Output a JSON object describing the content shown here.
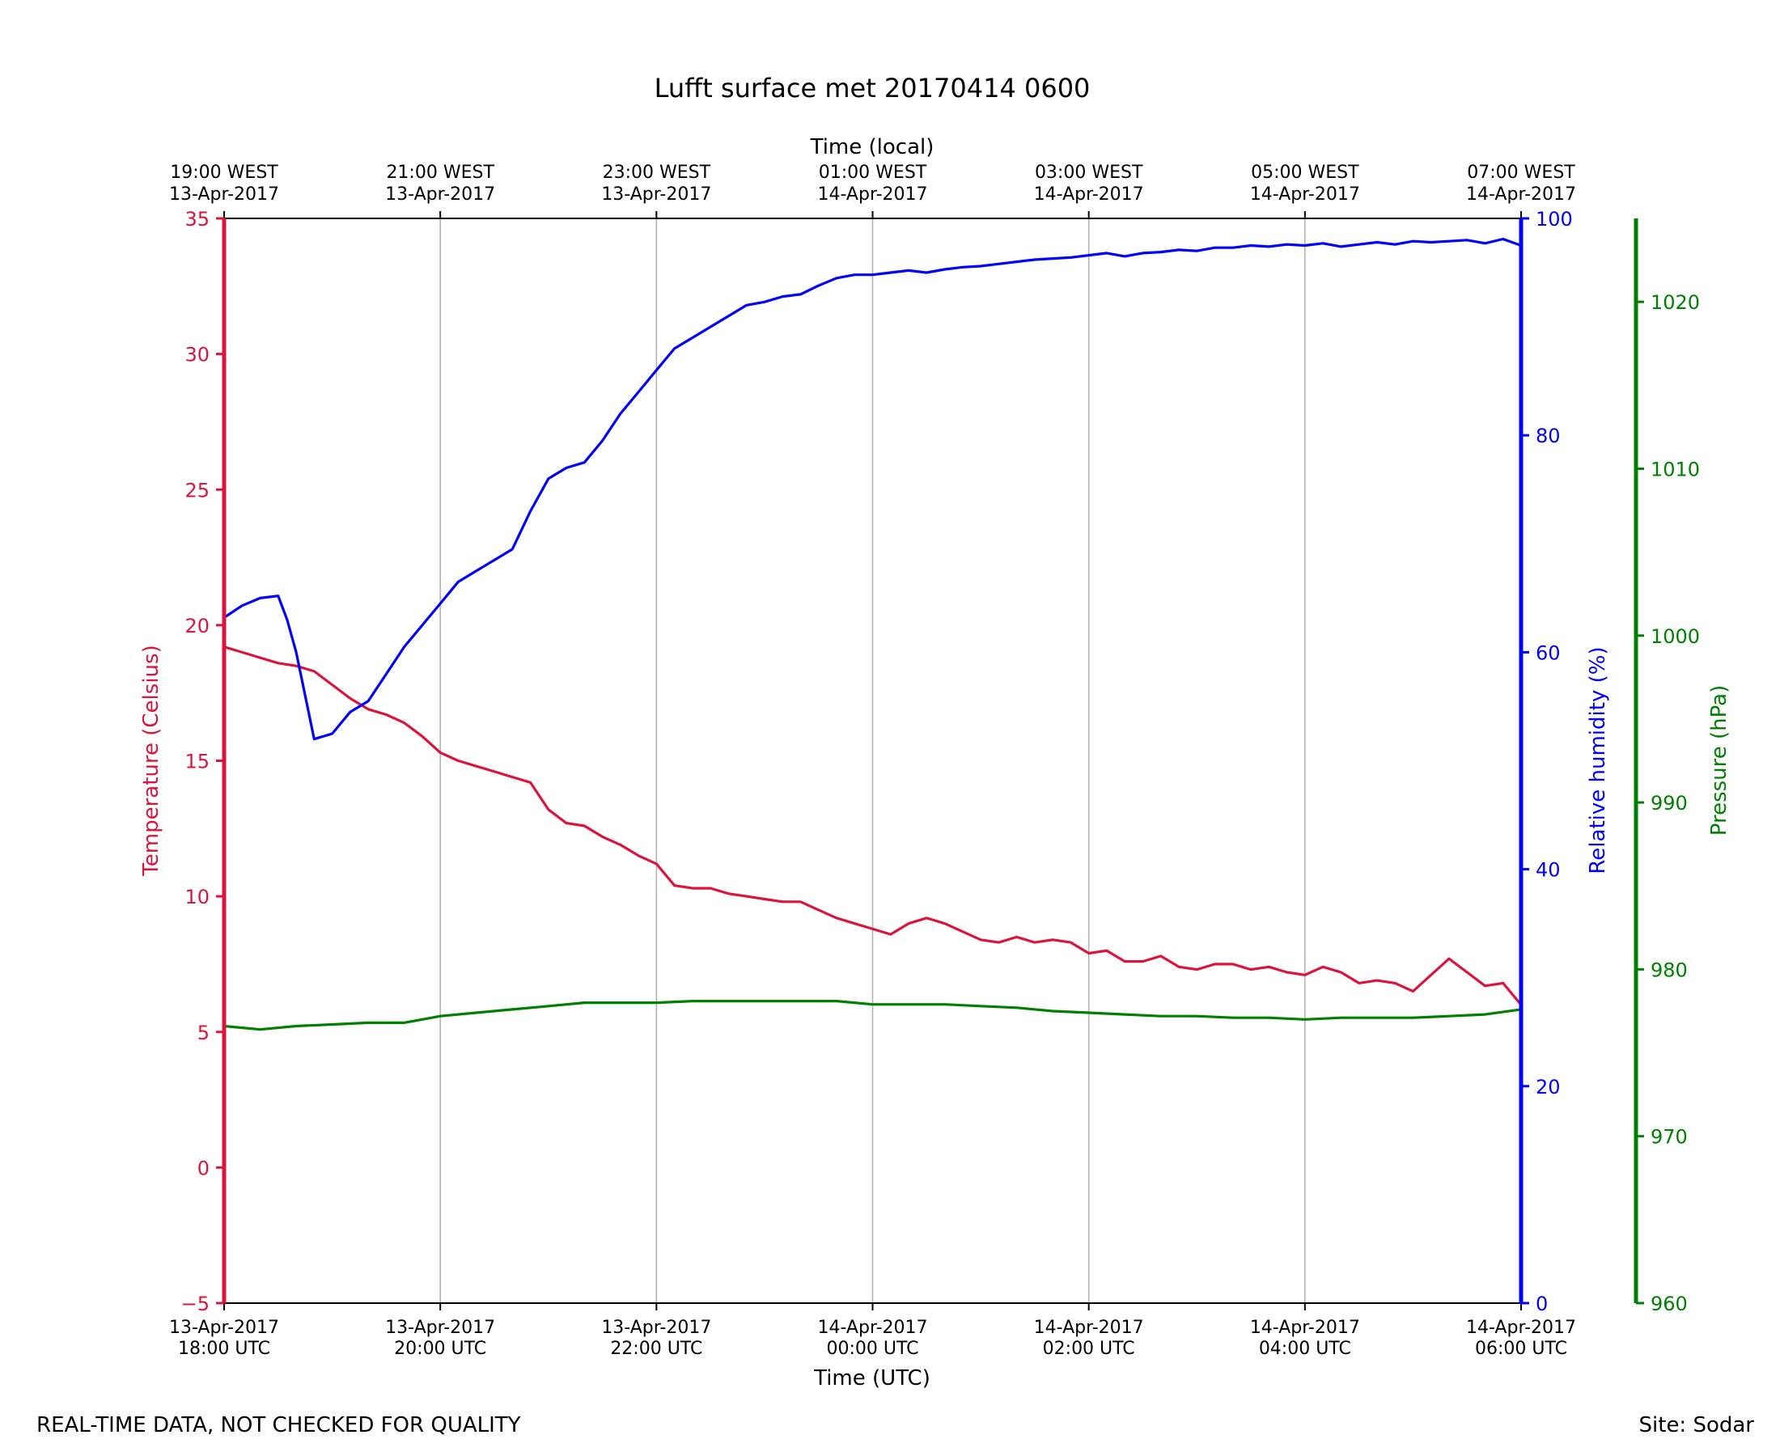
{
  "chart_data": {
    "type": "line",
    "title": "Lufft surface met 20170414 0600",
    "xlabel": "Time (UTC)",
    "x2label": "Time (local)",
    "x_range": [
      "2017-04-13T18:00Z",
      "2017-04-14T06:00Z"
    ],
    "x_ticks": [
      {
        "t": "2017-04-13T18:00Z",
        "line1": "13-Apr-2017",
        "line2": "18:00 UTC"
      },
      {
        "t": "2017-04-13T20:00Z",
        "line1": "13-Apr-2017",
        "line2": "20:00 UTC"
      },
      {
        "t": "2017-04-13T22:00Z",
        "line1": "13-Apr-2017",
        "line2": "22:00 UTC"
      },
      {
        "t": "2017-04-14T00:00Z",
        "line1": "14-Apr-2017",
        "line2": "00:00 UTC"
      },
      {
        "t": "2017-04-14T02:00Z",
        "line1": "14-Apr-2017",
        "line2": "02:00 UTC"
      },
      {
        "t": "2017-04-14T04:00Z",
        "line1": "14-Apr-2017",
        "line2": "04:00 UTC"
      },
      {
        "t": "2017-04-14T06:00Z",
        "line1": "14-Apr-2017",
        "line2": "06:00 UTC"
      }
    ],
    "x2_ticks": [
      {
        "t": "2017-04-13T18:00Z",
        "line1": "19:00 WEST",
        "line2": "13-Apr-2017"
      },
      {
        "t": "2017-04-13T20:00Z",
        "line1": "21:00 WEST",
        "line2": "13-Apr-2017"
      },
      {
        "t": "2017-04-13T22:00Z",
        "line1": "23:00 WEST",
        "line2": "13-Apr-2017"
      },
      {
        "t": "2017-04-14T00:00Z",
        "line1": "01:00 WEST",
        "line2": "14-Apr-2017"
      },
      {
        "t": "2017-04-14T02:00Z",
        "line1": "03:00 WEST",
        "line2": "14-Apr-2017"
      },
      {
        "t": "2017-04-14T04:00Z",
        "line1": "05:00 WEST",
        "line2": "14-Apr-2017"
      },
      {
        "t": "2017-04-14T06:00Z",
        "line1": "07:00 WEST",
        "line2": "14-Apr-2017"
      }
    ],
    "grid": "vertical",
    "axes": [
      {
        "id": "temp",
        "label": "Temperature (Celsius)",
        "side": "left",
        "ylim": [
          -5,
          35
        ],
        "ticks": [
          -5,
          0,
          5,
          10,
          15,
          20,
          25,
          30,
          35
        ],
        "color": "#dc143c"
      },
      {
        "id": "rh",
        "label": "Relative humidity (%)",
        "side": "right",
        "ylim": [
          0,
          100
        ],
        "ticks": [
          0,
          20,
          40,
          60,
          80,
          100
        ],
        "color": "#0000ff"
      },
      {
        "id": "pres",
        "label": "Pressure (hPa)",
        "side": "right-outer",
        "ylim": [
          960,
          1025
        ],
        "ticks": [
          960,
          970,
          980,
          990,
          1000,
          1010,
          1020
        ],
        "color": "#008000"
      }
    ],
    "series": [
      {
        "axis": "temp",
        "color": "#dc143c",
        "points": [
          [
            "2017-04-13T18:00Z",
            19.2
          ],
          [
            "2017-04-13T18:10Z",
            19.0
          ],
          [
            "2017-04-13T18:20Z",
            18.8
          ],
          [
            "2017-04-13T18:30Z",
            18.6
          ],
          [
            "2017-04-13T18:40Z",
            18.5
          ],
          [
            "2017-04-13T18:50Z",
            18.3
          ],
          [
            "2017-04-13T19:00Z",
            17.8
          ],
          [
            "2017-04-13T19:10Z",
            17.3
          ],
          [
            "2017-04-13T19:20Z",
            16.9
          ],
          [
            "2017-04-13T19:30Z",
            16.7
          ],
          [
            "2017-04-13T19:40Z",
            16.4
          ],
          [
            "2017-04-13T19:50Z",
            15.9
          ],
          [
            "2017-04-13T20:00Z",
            15.3
          ],
          [
            "2017-04-13T20:10Z",
            15.0
          ],
          [
            "2017-04-13T20:20Z",
            14.8
          ],
          [
            "2017-04-13T20:30Z",
            14.6
          ],
          [
            "2017-04-13T20:40Z",
            14.4
          ],
          [
            "2017-04-13T20:50Z",
            14.2
          ],
          [
            "2017-04-13T21:00Z",
            13.2
          ],
          [
            "2017-04-13T21:10Z",
            12.7
          ],
          [
            "2017-04-13T21:20Z",
            12.6
          ],
          [
            "2017-04-13T21:30Z",
            12.2
          ],
          [
            "2017-04-13T21:40Z",
            11.9
          ],
          [
            "2017-04-13T21:50Z",
            11.5
          ],
          [
            "2017-04-13T22:00Z",
            11.2
          ],
          [
            "2017-04-13T22:10Z",
            10.4
          ],
          [
            "2017-04-13T22:20Z",
            10.3
          ],
          [
            "2017-04-13T22:30Z",
            10.3
          ],
          [
            "2017-04-13T22:40Z",
            10.1
          ],
          [
            "2017-04-13T22:50Z",
            10.0
          ],
          [
            "2017-04-13T23:00Z",
            9.9
          ],
          [
            "2017-04-13T23:10Z",
            9.8
          ],
          [
            "2017-04-13T23:20Z",
            9.8
          ],
          [
            "2017-04-13T23:30Z",
            9.5
          ],
          [
            "2017-04-13T23:40Z",
            9.2
          ],
          [
            "2017-04-13T23:50Z",
            9.0
          ],
          [
            "2017-04-14T00:00Z",
            8.8
          ],
          [
            "2017-04-14T00:10Z",
            8.6
          ],
          [
            "2017-04-14T00:20Z",
            9.0
          ],
          [
            "2017-04-14T00:30Z",
            9.2
          ],
          [
            "2017-04-14T00:40Z",
            9.0
          ],
          [
            "2017-04-14T00:50Z",
            8.7
          ],
          [
            "2017-04-14T01:00Z",
            8.4
          ],
          [
            "2017-04-14T01:10Z",
            8.3
          ],
          [
            "2017-04-14T01:20Z",
            8.5
          ],
          [
            "2017-04-14T01:30Z",
            8.3
          ],
          [
            "2017-04-14T01:40Z",
            8.4
          ],
          [
            "2017-04-14T01:50Z",
            8.3
          ],
          [
            "2017-04-14T02:00Z",
            7.9
          ],
          [
            "2017-04-14T02:10Z",
            8.0
          ],
          [
            "2017-04-14T02:20Z",
            7.6
          ],
          [
            "2017-04-14T02:30Z",
            7.6
          ],
          [
            "2017-04-14T02:40Z",
            7.8
          ],
          [
            "2017-04-14T02:50Z",
            7.4
          ],
          [
            "2017-04-14T03:00Z",
            7.3
          ],
          [
            "2017-04-14T03:10Z",
            7.5
          ],
          [
            "2017-04-14T03:20Z",
            7.5
          ],
          [
            "2017-04-14T03:30Z",
            7.3
          ],
          [
            "2017-04-14T03:40Z",
            7.4
          ],
          [
            "2017-04-14T03:50Z",
            7.2
          ],
          [
            "2017-04-14T04:00Z",
            7.1
          ],
          [
            "2017-04-14T04:10Z",
            7.4
          ],
          [
            "2017-04-14T04:20Z",
            7.2
          ],
          [
            "2017-04-14T04:30Z",
            6.8
          ],
          [
            "2017-04-14T04:40Z",
            6.9
          ],
          [
            "2017-04-14T04:50Z",
            6.8
          ],
          [
            "2017-04-14T05:00Z",
            6.5
          ],
          [
            "2017-04-14T05:10Z",
            7.1
          ],
          [
            "2017-04-14T05:20Z",
            7.7
          ],
          [
            "2017-04-14T05:30Z",
            7.2
          ],
          [
            "2017-04-14T05:40Z",
            6.7
          ],
          [
            "2017-04-14T05:50Z",
            6.8
          ],
          [
            "2017-04-14T06:00Z",
            6.0
          ]
        ]
      },
      {
        "axis": "rh",
        "color": "#0000ff",
        "points": [
          [
            "2017-04-13T18:00Z",
            63.2
          ],
          [
            "2017-04-13T18:10Z",
            64.3
          ],
          [
            "2017-04-13T18:20Z",
            65.0
          ],
          [
            "2017-04-13T18:30Z",
            65.2
          ],
          [
            "2017-04-13T18:35Z",
            63.0
          ],
          [
            "2017-04-13T18:40Z",
            60.0
          ],
          [
            "2017-04-13T18:45Z",
            56.0
          ],
          [
            "2017-04-13T18:50Z",
            52.0
          ],
          [
            "2017-04-13T19:00Z",
            52.5
          ],
          [
            "2017-04-13T19:10Z",
            54.5
          ],
          [
            "2017-04-13T19:20Z",
            55.5
          ],
          [
            "2017-04-13T19:30Z",
            58.0
          ],
          [
            "2017-04-13T19:40Z",
            60.5
          ],
          [
            "2017-04-13T19:50Z",
            62.5
          ],
          [
            "2017-04-13T20:00Z",
            64.5
          ],
          [
            "2017-04-13T20:10Z",
            66.5
          ],
          [
            "2017-04-13T20:20Z",
            67.5
          ],
          [
            "2017-04-13T20:30Z",
            68.5
          ],
          [
            "2017-04-13T20:40Z",
            69.5
          ],
          [
            "2017-04-13T20:50Z",
            73.0
          ],
          [
            "2017-04-13T21:00Z",
            76.0
          ],
          [
            "2017-04-13T21:10Z",
            77.0
          ],
          [
            "2017-04-13T21:20Z",
            77.5
          ],
          [
            "2017-04-13T21:30Z",
            79.5
          ],
          [
            "2017-04-13T21:40Z",
            82.0
          ],
          [
            "2017-04-13T21:50Z",
            84.0
          ],
          [
            "2017-04-13T22:00Z",
            86.0
          ],
          [
            "2017-04-13T22:10Z",
            88.0
          ],
          [
            "2017-04-13T22:20Z",
            89.0
          ],
          [
            "2017-04-13T22:30Z",
            90.0
          ],
          [
            "2017-04-13T22:40Z",
            91.0
          ],
          [
            "2017-04-13T22:50Z",
            92.0
          ],
          [
            "2017-04-13T23:00Z",
            92.3
          ],
          [
            "2017-04-13T23:10Z",
            92.8
          ],
          [
            "2017-04-13T23:20Z",
            93.0
          ],
          [
            "2017-04-13T23:30Z",
            93.8
          ],
          [
            "2017-04-13T23:40Z",
            94.5
          ],
          [
            "2017-04-13T23:50Z",
            94.8
          ],
          [
            "2017-04-14T00:00Z",
            94.8
          ],
          [
            "2017-04-14T00:10Z",
            95.0
          ],
          [
            "2017-04-14T00:20Z",
            95.2
          ],
          [
            "2017-04-14T00:30Z",
            95.0
          ],
          [
            "2017-04-14T00:40Z",
            95.3
          ],
          [
            "2017-04-14T00:50Z",
            95.5
          ],
          [
            "2017-04-14T01:00Z",
            95.6
          ],
          [
            "2017-04-14T01:10Z",
            95.8
          ],
          [
            "2017-04-14T01:20Z",
            96.0
          ],
          [
            "2017-04-14T01:30Z",
            96.2
          ],
          [
            "2017-04-14T01:40Z",
            96.3
          ],
          [
            "2017-04-14T01:50Z",
            96.4
          ],
          [
            "2017-04-14T02:00Z",
            96.6
          ],
          [
            "2017-04-14T02:10Z",
            96.8
          ],
          [
            "2017-04-14T02:20Z",
            96.5
          ],
          [
            "2017-04-14T02:30Z",
            96.8
          ],
          [
            "2017-04-14T02:40Z",
            96.9
          ],
          [
            "2017-04-14T02:50Z",
            97.1
          ],
          [
            "2017-04-14T03:00Z",
            97.0
          ],
          [
            "2017-04-14T03:10Z",
            97.3
          ],
          [
            "2017-04-14T03:20Z",
            97.3
          ],
          [
            "2017-04-14T03:30Z",
            97.5
          ],
          [
            "2017-04-14T03:40Z",
            97.4
          ],
          [
            "2017-04-14T03:50Z",
            97.6
          ],
          [
            "2017-04-14T04:00Z",
            97.5
          ],
          [
            "2017-04-14T04:10Z",
            97.7
          ],
          [
            "2017-04-14T04:20Z",
            97.4
          ],
          [
            "2017-04-14T04:30Z",
            97.6
          ],
          [
            "2017-04-14T04:40Z",
            97.8
          ],
          [
            "2017-04-14T04:50Z",
            97.6
          ],
          [
            "2017-04-14T05:00Z",
            97.9
          ],
          [
            "2017-04-14T05:10Z",
            97.8
          ],
          [
            "2017-04-14T05:20Z",
            97.9
          ],
          [
            "2017-04-14T05:30Z",
            98.0
          ],
          [
            "2017-04-14T05:40Z",
            97.7
          ],
          [
            "2017-04-14T05:50Z",
            98.1
          ],
          [
            "2017-04-14T06:00Z",
            97.5
          ]
        ]
      },
      {
        "axis": "pres",
        "color": "#008000",
        "points": [
          [
            "2017-04-13T18:00Z",
            976.6
          ],
          [
            "2017-04-13T18:20Z",
            976.4
          ],
          [
            "2017-04-13T18:40Z",
            976.6
          ],
          [
            "2017-04-13T19:00Z",
            976.7
          ],
          [
            "2017-04-13T19:20Z",
            976.8
          ],
          [
            "2017-04-13T19:40Z",
            976.8
          ],
          [
            "2017-04-13T20:00Z",
            977.2
          ],
          [
            "2017-04-13T20:20Z",
            977.4
          ],
          [
            "2017-04-13T20:40Z",
            977.6
          ],
          [
            "2017-04-13T21:00Z",
            977.8
          ],
          [
            "2017-04-13T21:20Z",
            978.0
          ],
          [
            "2017-04-13T21:40Z",
            978.0
          ],
          [
            "2017-04-13T22:00Z",
            978.0
          ],
          [
            "2017-04-13T22:20Z",
            978.1
          ],
          [
            "2017-04-13T22:40Z",
            978.1
          ],
          [
            "2017-04-13T23:00Z",
            978.1
          ],
          [
            "2017-04-13T23:20Z",
            978.1
          ],
          [
            "2017-04-13T23:40Z",
            978.1
          ],
          [
            "2017-04-14T00:00Z",
            977.9
          ],
          [
            "2017-04-14T00:20Z",
            977.9
          ],
          [
            "2017-04-14T00:40Z",
            977.9
          ],
          [
            "2017-04-14T01:00Z",
            977.8
          ],
          [
            "2017-04-14T01:20Z",
            977.7
          ],
          [
            "2017-04-14T01:40Z",
            977.5
          ],
          [
            "2017-04-14T02:00Z",
            977.4
          ],
          [
            "2017-04-14T02:20Z",
            977.3
          ],
          [
            "2017-04-14T02:40Z",
            977.2
          ],
          [
            "2017-04-14T03:00Z",
            977.2
          ],
          [
            "2017-04-14T03:20Z",
            977.1
          ],
          [
            "2017-04-14T03:40Z",
            977.1
          ],
          [
            "2017-04-14T04:00Z",
            977.0
          ],
          [
            "2017-04-14T04:20Z",
            977.1
          ],
          [
            "2017-04-14T04:40Z",
            977.1
          ],
          [
            "2017-04-14T05:00Z",
            977.1
          ],
          [
            "2017-04-14T05:20Z",
            977.2
          ],
          [
            "2017-04-14T05:40Z",
            977.3
          ],
          [
            "2017-04-14T06:00Z",
            977.6
          ]
        ]
      }
    ]
  },
  "footer": {
    "left": "REAL-TIME DATA, NOT CHECKED FOR QUALITY",
    "right": "Site: Sodar"
  }
}
